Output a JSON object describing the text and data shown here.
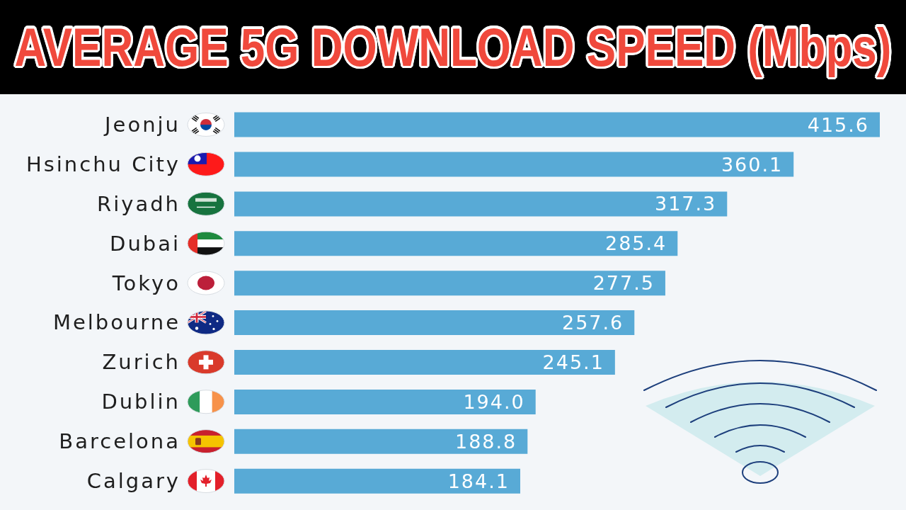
{
  "chart_data": {
    "type": "bar",
    "orientation": "horizontal",
    "title": "AVERAGE 5G DOWNLOAD SPEED (Mbps)",
    "categories": [
      "Jeonju",
      "Hsinchu City",
      "Riyadh",
      "Dubai",
      "Tokyo",
      "Melbourne",
      "Zurich",
      "Dublin",
      "Barcelona",
      "Calgary"
    ],
    "values": [
      415.6,
      360.1,
      317.3,
      285.4,
      277.5,
      257.6,
      245.1,
      194.0,
      188.8,
      184.1
    ],
    "value_labels": [
      "415.6",
      "360.1",
      "317.3",
      "285.4",
      "277.5",
      "257.6",
      "245.1",
      "194.0",
      "188.8",
      "184.1"
    ],
    "color": "#58aad6",
    "tick_labels": "y"
  }
}
